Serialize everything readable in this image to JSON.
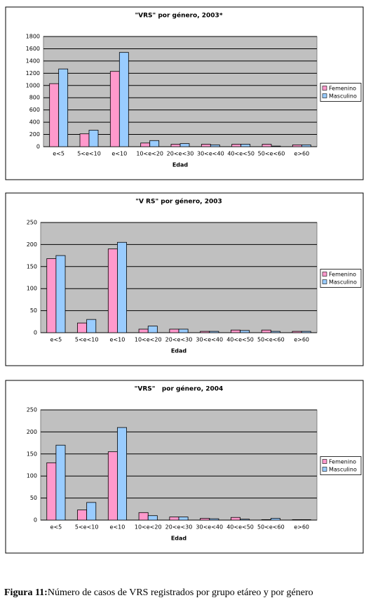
{
  "chart_data": [
    {
      "type": "bar",
      "title": "\"VRS\" por género, 2003*",
      "x_label": "Edad",
      "categories": [
        "e<5",
        "5<e<10",
        "e<10",
        "10<e<20",
        "20<e<30",
        "30<e<40",
        "40<e<50",
        "50<e<60",
        "e>60"
      ],
      "series": [
        {
          "name": "Femenino",
          "color": "#ff99cc",
          "values": [
            1030,
            210,
            1230,
            60,
            40,
            40,
            40,
            40,
            30
          ]
        },
        {
          "name": "Masculino",
          "color": "#99ccff",
          "values": [
            1270,
            270,
            1540,
            100,
            50,
            30,
            40,
            10,
            30
          ]
        }
      ],
      "ylim": [
        0,
        1800
      ],
      "yticks": [
        0,
        200,
        400,
        600,
        800,
        1000,
        1200,
        1400,
        1600,
        1800
      ],
      "grid": true,
      "legend": "right"
    },
    {
      "type": "bar",
      "title": "\"V RS\" por género, 2003",
      "x_label": "Edad",
      "categories": [
        "e<5",
        "5<e<10",
        "e<10",
        "10<e<20",
        "20<e<30",
        "30<e<40",
        "40<e<50",
        "50<e<60",
        "e>60"
      ],
      "series": [
        {
          "name": "Femenino",
          "color": "#ff99cc",
          "values": [
            168,
            22,
            190,
            8,
            8,
            3,
            6,
            6,
            3
          ]
        },
        {
          "name": "Masculino",
          "color": "#99ccff",
          "values": [
            175,
            30,
            205,
            15,
            8,
            3,
            5,
            3,
            3
          ]
        }
      ],
      "ylim": [
        0,
        250
      ],
      "yticks": [
        0,
        50,
        100,
        150,
        200,
        250
      ],
      "grid": true,
      "legend": "right"
    },
    {
      "type": "bar",
      "title": "\"VRS\"   por género, 2004",
      "x_label": "Edad",
      "categories": [
        "e<5",
        "5<e<10",
        "e<10",
        "10<e<20",
        "20<e<30",
        "30<e<40",
        "40<e<50",
        "50<e<60",
        "e>60"
      ],
      "series": [
        {
          "name": "Femenino",
          "color": "#ff99cc",
          "values": [
            130,
            23,
            155,
            17,
            7,
            4,
            6,
            1,
            1
          ]
        },
        {
          "name": "Masculino",
          "color": "#99ccff",
          "values": [
            170,
            40,
            210,
            10,
            7,
            3,
            2,
            4,
            1
          ]
        }
      ],
      "ylim": [
        0,
        250
      ],
      "yticks": [
        0,
        50,
        100,
        150,
        200,
        250
      ],
      "grid": true,
      "legend": "right"
    }
  ],
  "caption": {
    "label": "Figura 11:",
    "text": "Número de casos de VRS registrados por grupo etáreo y por género"
  }
}
